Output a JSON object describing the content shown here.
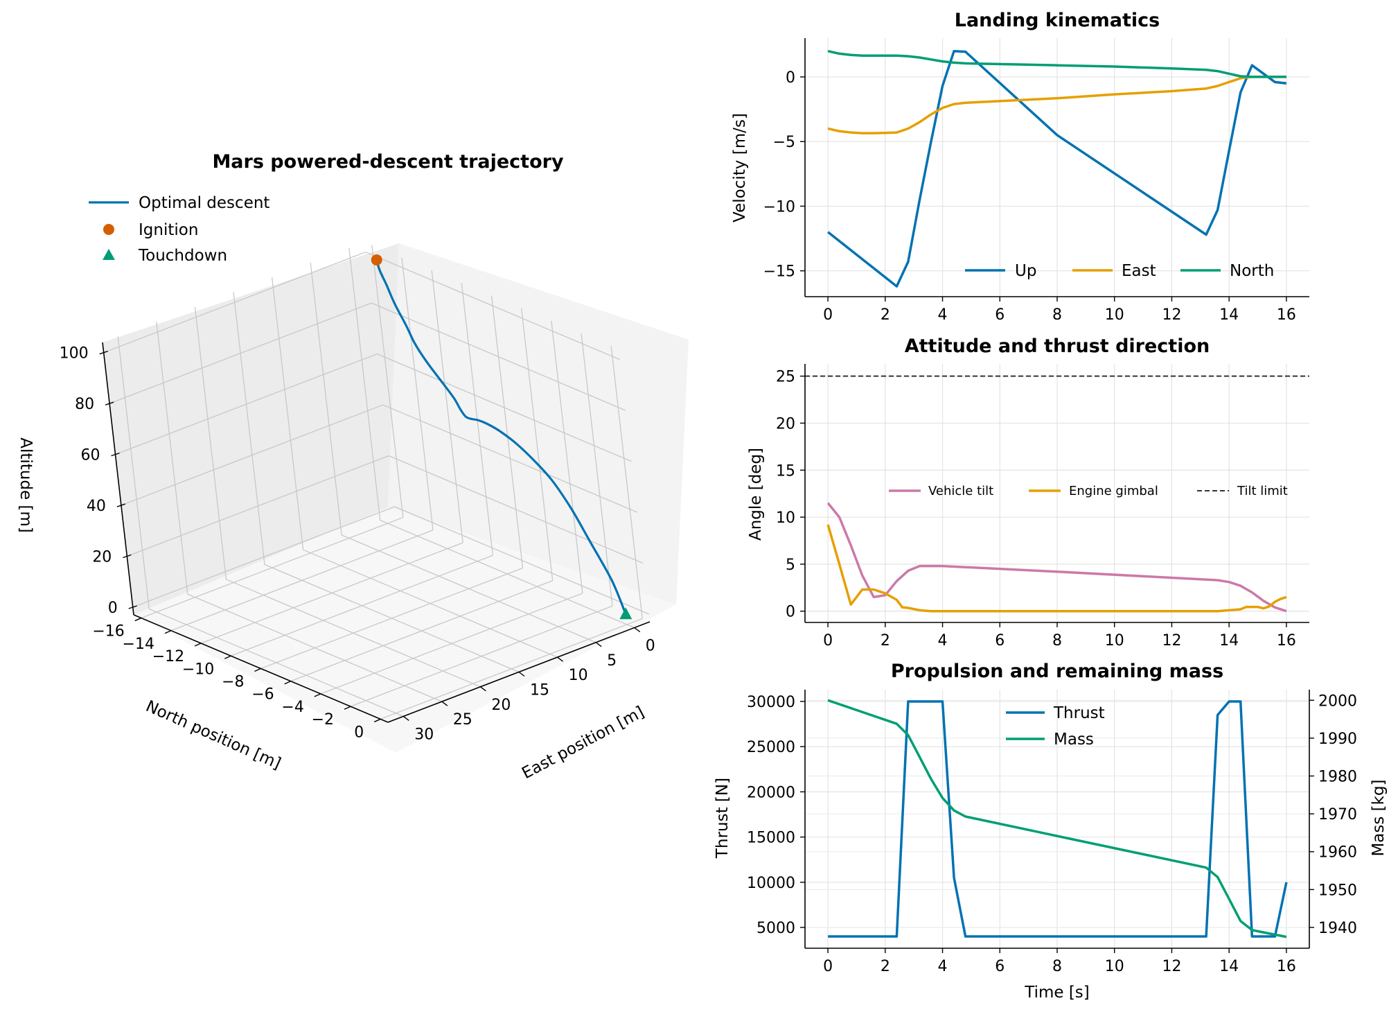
{
  "chart_data": [
    {
      "type": "line3d",
      "title": "Mars powered-descent trajectory",
      "xlabel": "East position [m]",
      "ylabel": "North position [m]",
      "zlabel": "Altitude [m]",
      "xlim": [
        -2,
        32
      ],
      "ylim": [
        -16.5,
        0.5
      ],
      "zlim": [
        -3,
        104
      ],
      "x_ticks": [
        0,
        5,
        10,
        15,
        20,
        25,
        30
      ],
      "y_ticks": [
        -16,
        -14,
        -12,
        -10,
        -8,
        -6,
        -4,
        -2,
        0
      ],
      "z_ticks": [
        0,
        20,
        40,
        60,
        80,
        100
      ],
      "x_tick_labels": [
        "0",
        "5",
        "10",
        "15",
        "20",
        "25",
        "30"
      ],
      "y_tick_labels": [
        "−16",
        "−14",
        "−12",
        "−10",
        "−8",
        "−6",
        "−4",
        "−2",
        "0"
      ],
      "z_tick_labels": [
        "0",
        "20",
        "40",
        "60",
        "80",
        "100"
      ],
      "grid": true,
      "legend_position": "top-left",
      "series": [
        {
          "name": "Optimal descent",
          "color": "#0072B2",
          "x": [
            -1.5,
            -1.2,
            -0.8,
            -0.3,
            0.2,
            0.6,
            0.8,
            1.0,
            1.3,
            1.7,
            2.2,
            2.6,
            2.9,
            3.1,
            3.2,
            3.2,
            3.1,
            2.7,
            2.3,
            1.7,
            0.7,
            0.0
          ],
          "y": [
            -15.5,
            -15.2,
            -14.6,
            -13.9,
            -13.0,
            -12.3,
            -11.5,
            -10.5,
            -9.6,
            -9.0,
            -8.4,
            -7.8,
            -7.2,
            -6.5,
            -5.6,
            -4.6,
            -3.6,
            -2.6,
            -1.7,
            -1.0,
            -0.3,
            0.0
          ],
          "z": [
            100,
            97,
            93,
            88,
            82.5,
            77.5,
            72.5,
            67.5,
            63.6,
            61,
            60.3,
            61.4,
            62.8,
            63.4,
            62.9,
            60.8,
            57,
            50.5,
            41.2,
            29.5,
            14.2,
            1.0
          ]
        },
        {
          "name": "Ignition",
          "color": "#D55E00",
          "marker": "circle",
          "x": [
            -1.5
          ],
          "y": [
            -15.5
          ],
          "z": [
            100
          ]
        },
        {
          "name": "Touchdown",
          "color": "#009E73",
          "marker": "triangle",
          "x": [
            0
          ],
          "y": [
            0
          ],
          "z": [
            1
          ]
        }
      ]
    },
    {
      "type": "line",
      "title": "Landing kinematics",
      "ylabel": "Velocity [m/s]",
      "xlim": [
        -0.8,
        16.8
      ],
      "ylim": [
        -17,
        3
      ],
      "x_ticks": [
        0,
        2,
        4,
        6,
        8,
        10,
        12,
        14,
        16
      ],
      "y_ticks": [
        -15,
        -10,
        -5,
        0
      ],
      "x_tick_labels": [
        "0",
        "2",
        "4",
        "6",
        "8",
        "10",
        "12",
        "14",
        "16"
      ],
      "y_tick_labels": [
        "−15",
        "−10",
        "−5",
        "0"
      ],
      "grid": true,
      "legend_position": "lower-right",
      "series": [
        {
          "name": "Up",
          "color": "#0072B2",
          "x": [
            0,
            2.4,
            2.8,
            3.2,
            3.6,
            4.0,
            4.4,
            4.8,
            8,
            13.2,
            13.6,
            14.0,
            14.4,
            14.8,
            15.6,
            16
          ],
          "y": [
            -12.0,
            -16.2,
            -14.3,
            -9.5,
            -5.0,
            -0.7,
            2.0,
            1.95,
            -4.5,
            -12.2,
            -10.3,
            -5.7,
            -1.2,
            0.9,
            -0.4,
            -0.5
          ]
        },
        {
          "name": "East",
          "color": "#E69F00",
          "x": [
            0,
            0.4,
            0.8,
            1.2,
            1.6,
            2.0,
            2.4,
            2.8,
            3.2,
            3.6,
            4.0,
            4.4,
            4.8,
            8,
            10,
            12,
            13.2,
            13.6,
            14.0,
            14.4,
            14.8,
            15.2,
            15.6,
            16
          ],
          "y": [
            -4.0,
            -4.2,
            -4.3,
            -4.35,
            -4.35,
            -4.33,
            -4.3,
            -4.0,
            -3.5,
            -2.9,
            -2.4,
            -2.1,
            -2.0,
            -1.65,
            -1.35,
            -1.1,
            -0.9,
            -0.7,
            -0.4,
            -0.1,
            0.0,
            0.0,
            0.0,
            0.0
          ]
        },
        {
          "name": "North",
          "color": "#009E73",
          "x": [
            0,
            0.4,
            0.8,
            1.2,
            1.6,
            2.0,
            2.4,
            2.8,
            3.2,
            3.6,
            4.0,
            4.4,
            4.8,
            8,
            10,
            12,
            13.2,
            13.6,
            14.0,
            14.4,
            14.8,
            15.2,
            15.6,
            16
          ],
          "y": [
            2.0,
            1.8,
            1.7,
            1.65,
            1.65,
            1.65,
            1.65,
            1.6,
            1.5,
            1.35,
            1.2,
            1.1,
            1.05,
            0.9,
            0.8,
            0.65,
            0.55,
            0.45,
            0.25,
            0.05,
            0.0,
            0.0,
            0.0,
            0.0
          ]
        }
      ]
    },
    {
      "type": "line",
      "title": "Attitude and thrust direction",
      "ylabel": "Angle [deg]",
      "xlim": [
        -0.8,
        16.8
      ],
      "ylim": [
        -1.2,
        26.3
      ],
      "x_ticks": [
        0,
        2,
        4,
        6,
        8,
        10,
        12,
        14,
        16
      ],
      "y_ticks": [
        0,
        5,
        10,
        15,
        20,
        25
      ],
      "x_tick_labels": [
        "0",
        "2",
        "4",
        "6",
        "8",
        "10",
        "12",
        "14",
        "16"
      ],
      "y_tick_labels": [
        "0",
        "5",
        "10",
        "15",
        "20",
        "25"
      ],
      "grid": true,
      "legend_position": "center-right",
      "series": [
        {
          "name": "Vehicle tilt",
          "color": "#CC79A7",
          "x": [
            0,
            0.4,
            0.8,
            1.2,
            1.6,
            2.0,
            2.4,
            2.8,
            3.2,
            3.6,
            4.0,
            8,
            13.6,
            14.0,
            14.4,
            14.8,
            15.2,
            15.6,
            16
          ],
          "y": [
            11.5,
            10.0,
            7.0,
            3.8,
            1.5,
            1.7,
            3.2,
            4.3,
            4.8,
            4.8,
            4.8,
            4.2,
            3.3,
            3.1,
            2.7,
            2.0,
            1.1,
            0.4,
            0.0
          ]
        },
        {
          "name": "Engine gimbal",
          "color": "#E69F00",
          "x": [
            0,
            0.4,
            0.8,
            1.2,
            1.6,
            2.0,
            2.4,
            2.6,
            2.8,
            3.2,
            3.6,
            4.0,
            8,
            13.6,
            14.0,
            14.4,
            14.6,
            15.0,
            15.2,
            15.4,
            15.6,
            15.8,
            16
          ],
          "y": [
            9.2,
            5.0,
            0.7,
            2.3,
            2.3,
            1.9,
            1.2,
            0.4,
            0.35,
            0.1,
            0.0,
            0.0,
            0.0,
            0.0,
            0.1,
            0.2,
            0.45,
            0.45,
            0.3,
            0.5,
            1.0,
            1.3,
            1.5
          ]
        },
        {
          "name": "Tilt limit",
          "color": "#333333",
          "dashed": true,
          "x": [
            -0.8,
            16.8
          ],
          "y": [
            25,
            25
          ]
        }
      ]
    },
    {
      "type": "line",
      "title": "Propulsion and remaining mass",
      "xlabel": "Time [s]",
      "ylabel": "Thrust [N]",
      "y2label": "Mass [kg]",
      "xlim": [
        -0.8,
        16.8
      ],
      "ylim": [
        2700,
        31300
      ],
      "y2lim": [
        1934.5,
        2002.8
      ],
      "x_ticks": [
        0,
        2,
        4,
        6,
        8,
        10,
        12,
        14,
        16
      ],
      "y_ticks": [
        5000,
        10000,
        15000,
        20000,
        25000,
        30000
      ],
      "y2_ticks": [
        1940,
        1950,
        1960,
        1970,
        1980,
        1990,
        2000
      ],
      "x_tick_labels": [
        "0",
        "2",
        "4",
        "6",
        "8",
        "10",
        "12",
        "14",
        "16"
      ],
      "y_tick_labels": [
        "5000",
        "10000",
        "15000",
        "20000",
        "25000",
        "30000"
      ],
      "y2_tick_labels": [
        "1940",
        "1950",
        "1960",
        "1970",
        "1980",
        "1990",
        "2000"
      ],
      "grid": true,
      "legend_position": "upper-center",
      "series": [
        {
          "name": "Thrust",
          "color": "#0072B2",
          "axis": "left",
          "x": [
            0,
            2.4,
            2.8,
            3.2,
            3.6,
            4.0,
            4.4,
            4.8,
            13.2,
            13.6,
            14.0,
            14.4,
            14.8,
            15.6,
            16
          ],
          "y": [
            4000,
            4000,
            30000,
            30000,
            30000,
            30000,
            10500,
            4000,
            4000,
            28500,
            30000,
            30000,
            4000,
            4000,
            10000
          ]
        },
        {
          "name": "Mass",
          "color": "#009E73",
          "axis": "right",
          "x": [
            0,
            2.4,
            2.8,
            3.2,
            3.6,
            4.0,
            4.4,
            4.8,
            13.2,
            13.6,
            14.0,
            14.4,
            14.8,
            15.2,
            16
          ],
          "y": [
            2000,
            1993.8,
            1990.8,
            1985.0,
            1979.2,
            1974.2,
            1970.9,
            1969.3,
            1955.8,
            1953.3,
            1947.5,
            1941.7,
            1939.3,
            1938.7,
            1937.5
          ]
        }
      ]
    }
  ]
}
